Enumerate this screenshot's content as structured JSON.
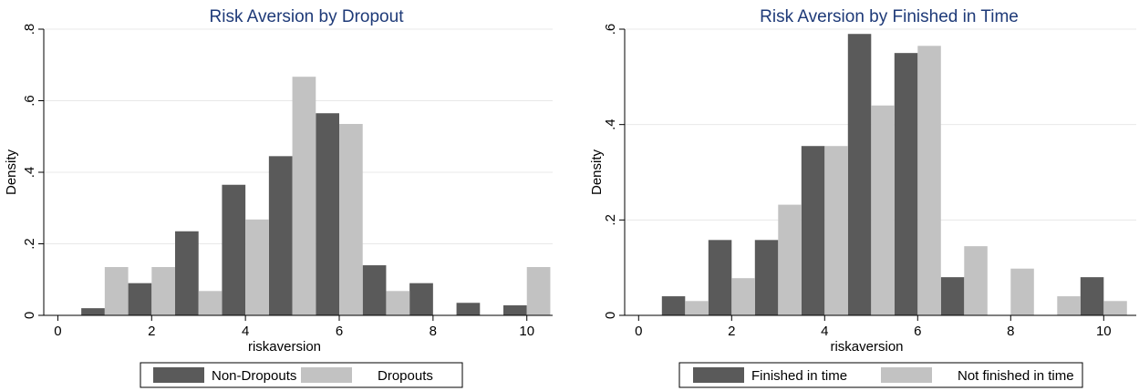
{
  "colors": {
    "dark": "#5a5a5a",
    "light": "#c2c2c2",
    "grid": "#e8e8e8",
    "title": "#1e3a78",
    "axis": "#000000"
  },
  "chart_data": [
    {
      "type": "bar",
      "title": "Risk Aversion by Dropout",
      "xlabel": "riskaversion",
      "ylabel": "Density",
      "xlim": [
        -0.3,
        10.55
      ],
      "ylim": [
        0,
        0.8
      ],
      "x_ticks": [
        0,
        2,
        4,
        6,
        8,
        10
      ],
      "x_tick_labels": [
        "0",
        "2",
        "4",
        "6",
        "8",
        "10"
      ],
      "y_ticks": [
        0,
        0.2,
        0.4,
        0.6,
        0.8
      ],
      "y_tick_labels": [
        "0",
        ".2",
        ".4",
        ".6",
        ".8"
      ],
      "grid": true,
      "legend_position": "bottom",
      "bar_width": 0.5,
      "series": [
        {
          "name": "Non-Dropouts",
          "color": "dark",
          "x": [
            0.75,
            1.75,
            2.75,
            3.75,
            4.75,
            5.75,
            6.75,
            7.75,
            8.75,
            9.75
          ],
          "values": [
            0.02,
            0.09,
            0.235,
            0.365,
            0.445,
            0.565,
            0.14,
            0.09,
            0.035,
            0.028
          ]
        },
        {
          "name": "Dropouts",
          "color": "light",
          "x": [
            1.25,
            2.25,
            3.25,
            4.25,
            5.25,
            6.25,
            7.25,
            10.25
          ],
          "values": [
            0.135,
            0.135,
            0.068,
            0.268,
            0.667,
            0.535,
            0.068,
            0.135
          ]
        }
      ]
    },
    {
      "type": "bar",
      "title": "Risk Aversion by Finished in Time",
      "xlabel": "riskaversion",
      "ylabel": "Density",
      "xlim": [
        -0.3,
        10.7
      ],
      "ylim": [
        0,
        0.6
      ],
      "x_ticks": [
        0,
        2,
        4,
        6,
        8,
        10
      ],
      "x_tick_labels": [
        "0",
        "2",
        "4",
        "6",
        "8",
        "10"
      ],
      "y_ticks": [
        0,
        0.2,
        0.4,
        0.6
      ],
      "y_tick_labels": [
        "0",
        ".2",
        ".4",
        ".6"
      ],
      "grid": true,
      "legend_position": "bottom",
      "bar_width": 0.5,
      "series": [
        {
          "name": "Finished in time",
          "color": "dark",
          "x": [
            0.75,
            1.75,
            2.75,
            3.75,
            4.75,
            5.75,
            6.75,
            9.75
          ],
          "values": [
            0.04,
            0.158,
            0.158,
            0.355,
            0.59,
            0.55,
            0.08,
            0.08
          ]
        },
        {
          "name": "Not finished in time",
          "color": "light",
          "x": [
            1.25,
            2.25,
            3.25,
            4.25,
            5.25,
            6.25,
            7.25,
            8.25,
            9.25,
            10.25
          ],
          "values": [
            0.03,
            0.078,
            0.232,
            0.355,
            0.44,
            0.565,
            0.145,
            0.098,
            0.04,
            0.03
          ]
        }
      ]
    }
  ]
}
